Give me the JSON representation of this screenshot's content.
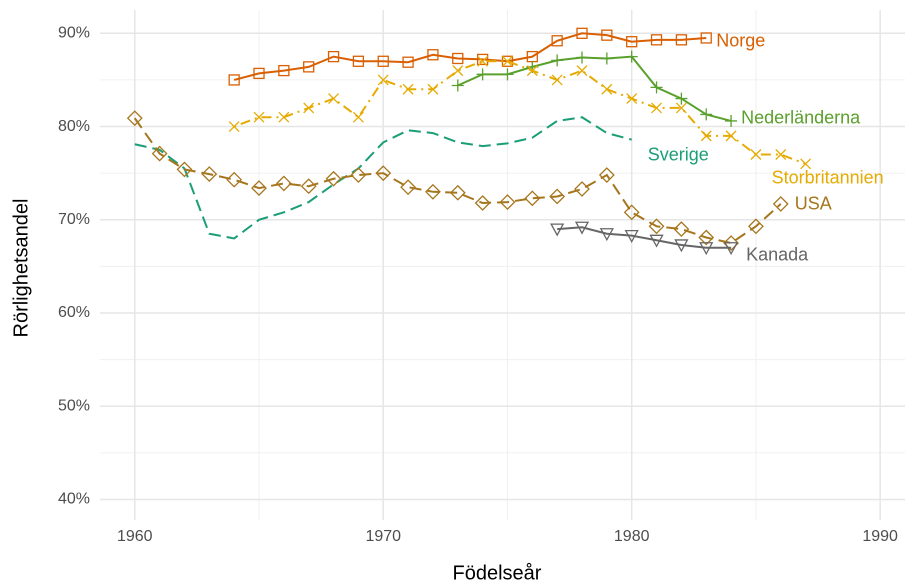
{
  "chart_data": {
    "type": "line",
    "xlabel": "Födelseår",
    "ylabel": "Rörlighetsandel",
    "xlim": [
      1958.6,
      1991
    ],
    "ylim": [
      37.8,
      92.5
    ],
    "xticks": [
      1960,
      1970,
      1980,
      1990
    ],
    "yticks": [
      {
        "value": 40,
        "label": "40%"
      },
      {
        "value": 50,
        "label": "50%"
      },
      {
        "value": 60,
        "label": "60%"
      },
      {
        "value": 70,
        "label": "70%"
      },
      {
        "value": 80,
        "label": "80%"
      },
      {
        "value": 90,
        "label": "90%"
      }
    ],
    "grid": true,
    "series": [
      {
        "name": "Norge",
        "color": "#d95f02",
        "marker": "square",
        "dash": "solid",
        "x": [
          1964,
          1965,
          1966,
          1967,
          1968,
          1969,
          1970,
          1971,
          1972,
          1973,
          1974,
          1975,
          1976,
          1977,
          1978,
          1979,
          1980,
          1981,
          1982,
          1983
        ],
        "values": [
          85.0,
          85.7,
          86.0,
          86.4,
          87.5,
          87.0,
          87.0,
          86.9,
          87.7,
          87.3,
          87.2,
          87.0,
          87.5,
          89.2,
          90.0,
          89.8,
          89.1,
          89.3,
          89.3,
          89.5
        ]
      },
      {
        "name": "Nederländerna",
        "color": "#5aa02c",
        "marker": "plus",
        "dash": "solid",
        "x": [
          1973,
          1974,
          1975,
          1976,
          1977,
          1978,
          1979,
          1980,
          1981,
          1982,
          1983,
          1984
        ],
        "values": [
          84.4,
          85.6,
          85.6,
          86.4,
          87.1,
          87.4,
          87.3,
          87.5,
          84.2,
          83.0,
          81.3,
          80.6
        ]
      },
      {
        "name": "Storbritannien",
        "color": "#e6ab02",
        "marker": "x",
        "dash": "dotdash",
        "x": [
          1964,
          1965,
          1966,
          1967,
          1968,
          1969,
          1970,
          1971,
          1972,
          1973,
          1974,
          1975,
          1976,
          1977,
          1978,
          1979,
          1980,
          1981,
          1982,
          1983,
          1984,
          1985,
          1986,
          1987
        ],
        "values": [
          80.0,
          81.0,
          81.0,
          82.0,
          83.0,
          81.0,
          85.0,
          84.0,
          84.0,
          86.0,
          87.0,
          87.0,
          86.0,
          85.0,
          86.0,
          84.0,
          83.0,
          82.0,
          82.0,
          79.0,
          79.0,
          77.0,
          77.0,
          76.0
        ]
      },
      {
        "name": "Sverige",
        "color": "#1b9e77",
        "marker": "none",
        "dash": "dashed",
        "x": [
          1960,
          1961,
          1962,
          1963,
          1964,
          1965,
          1966,
          1967,
          1968,
          1969,
          1970,
          1971,
          1972,
          1973,
          1974,
          1975,
          1976,
          1977,
          1978,
          1979,
          1980
        ],
        "values": [
          78.1,
          77.5,
          75.5,
          68.5,
          68.0,
          70.0,
          70.8,
          71.9,
          73.8,
          75.5,
          78.3,
          79.6,
          79.3,
          78.3,
          77.9,
          78.2,
          78.8,
          80.6,
          81.0,
          79.3,
          78.6
        ]
      },
      {
        "name": "USA",
        "color": "#a6761d",
        "marker": "diamond",
        "dash": "dashed",
        "x": [
          1960,
          1961,
          1962,
          1963,
          1964,
          1965,
          1966,
          1967,
          1968,
          1969,
          1970,
          1971,
          1972,
          1973,
          1974,
          1975,
          1976,
          1977,
          1978,
          1979,
          1980,
          1981,
          1982,
          1983,
          1984,
          1985,
          1986
        ],
        "values": [
          80.9,
          77.1,
          75.4,
          74.9,
          74.3,
          73.4,
          73.9,
          73.6,
          74.4,
          74.8,
          75.0,
          73.5,
          73.0,
          72.9,
          71.8,
          71.9,
          72.3,
          72.5,
          73.3,
          74.8,
          70.8,
          69.3,
          69.0,
          68.1,
          67.5,
          69.3,
          71.7
        ]
      },
      {
        "name": "Kanada",
        "color": "#666666",
        "marker": "triangle-down",
        "dash": "solid",
        "x": [
          1977,
          1978,
          1979,
          1980,
          1981,
          1982,
          1983,
          1984
        ],
        "values": [
          69.0,
          69.2,
          68.5,
          68.3,
          67.8,
          67.3,
          67.0,
          67.0
        ]
      }
    ]
  }
}
